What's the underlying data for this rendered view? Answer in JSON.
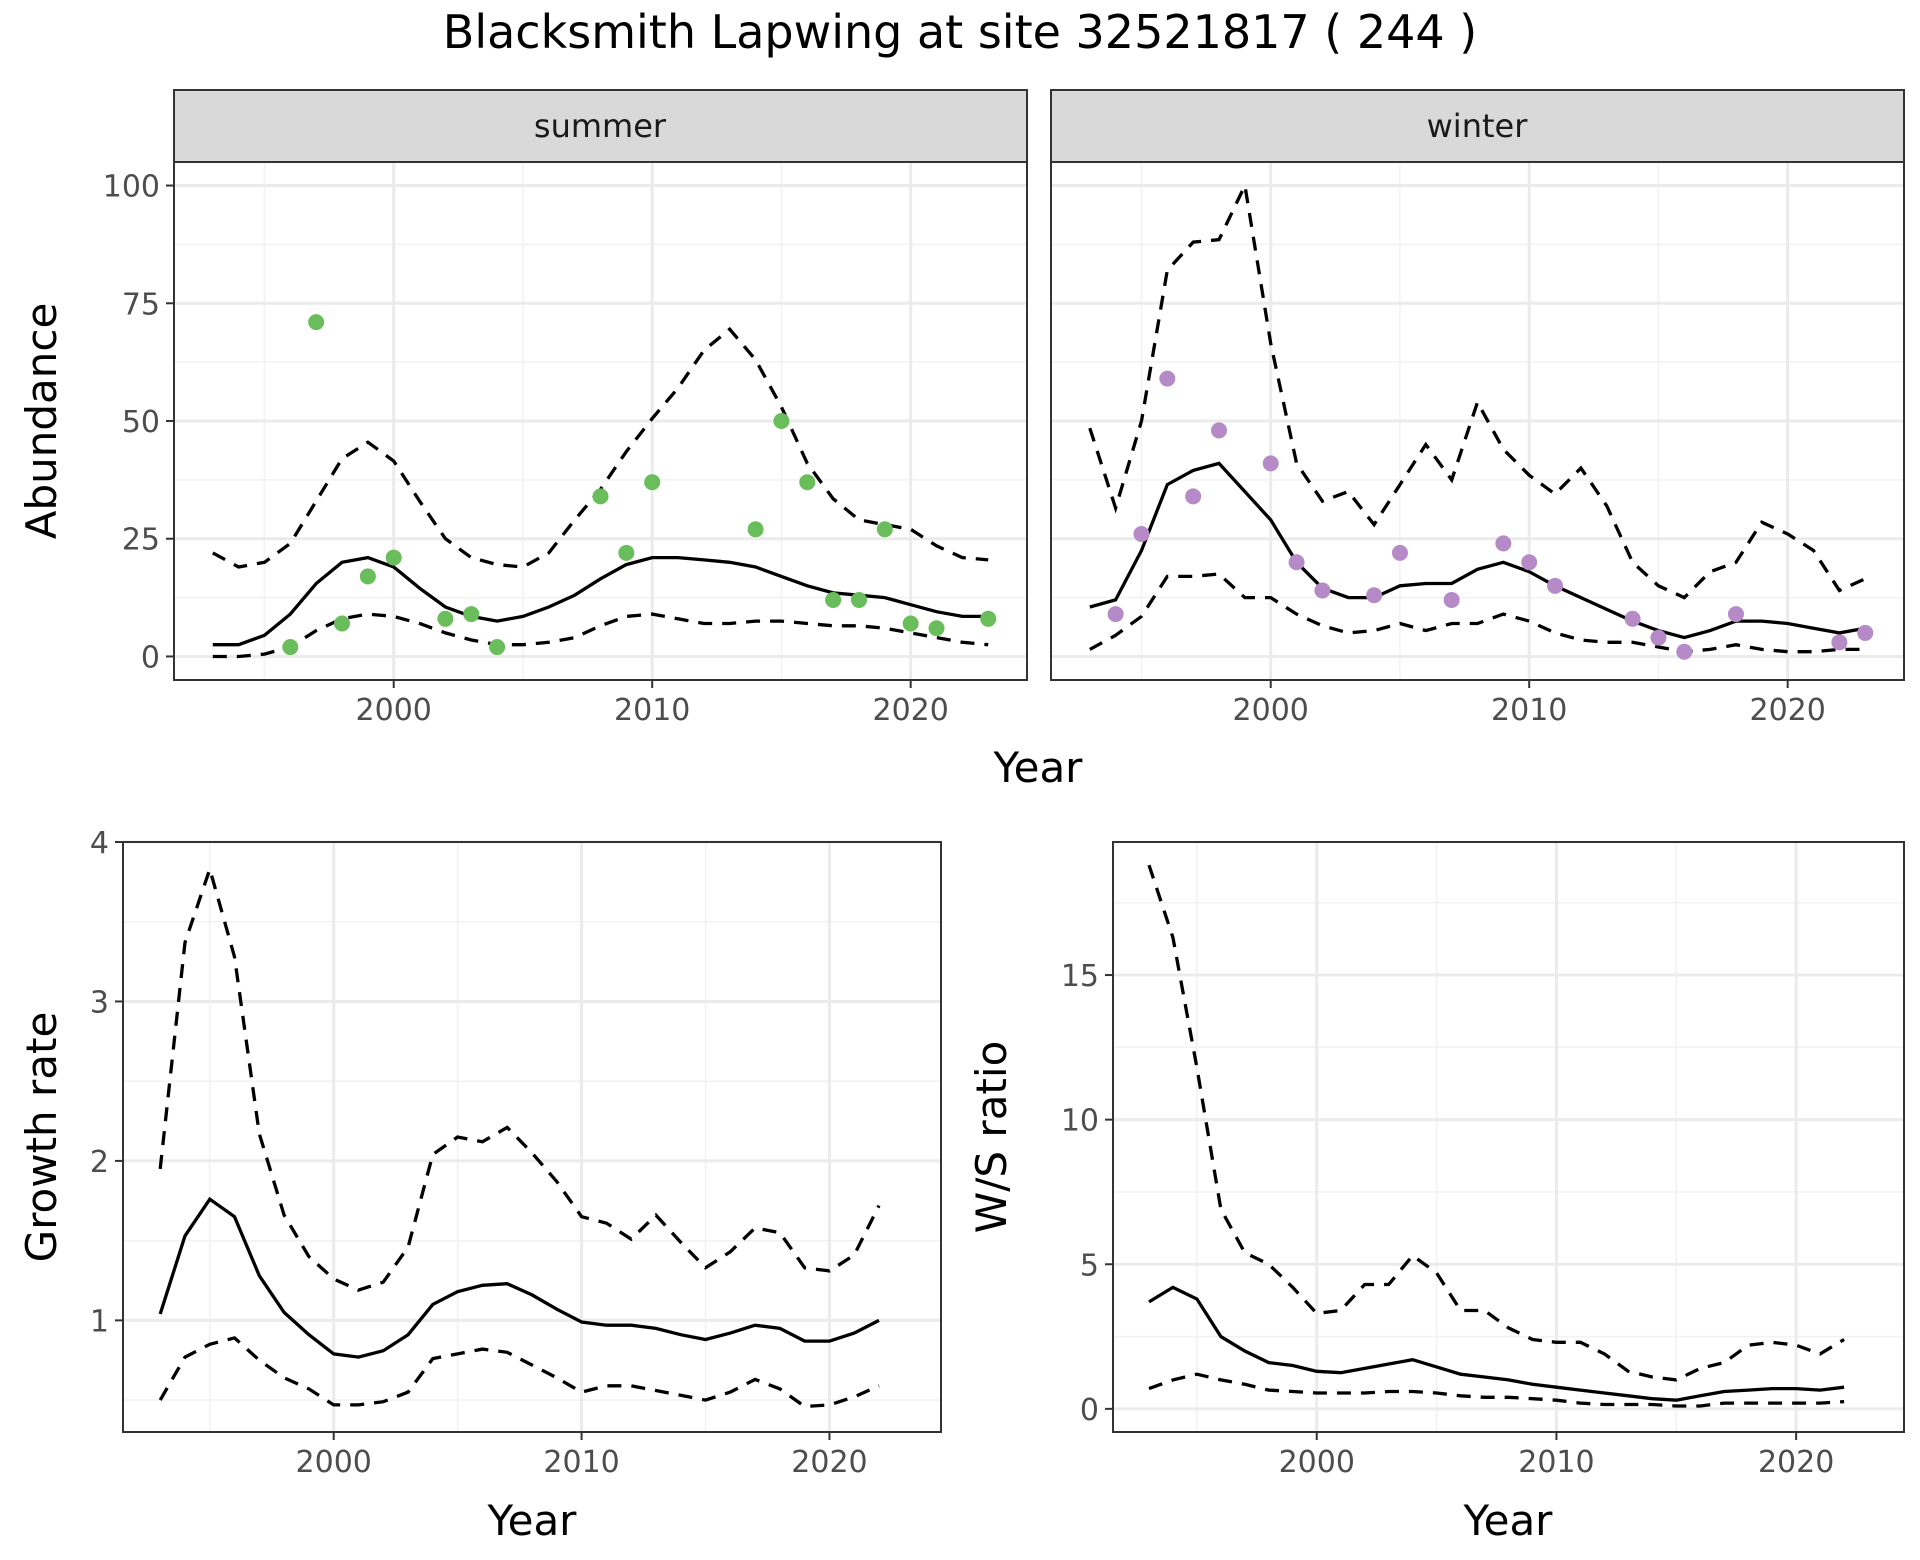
{
  "title": "Blacksmith Lapwing at site 32521817 ( 244 )",
  "colors": {
    "summer_points": "#6abd5b",
    "winter_points": "#b58ac7",
    "strip_fill": "#d9d9d9",
    "lines": "#000000"
  },
  "chart_data": [
    {
      "type": "line",
      "facet": "summer",
      "xlabel": "Year",
      "ylabel": "Abundance",
      "xlim": [
        1991.5,
        2024.5
      ],
      "ylim": [
        -5,
        105
      ],
      "xticks": [
        2000,
        2010,
        2020
      ],
      "yticks": [
        0,
        25,
        50,
        75,
        100
      ],
      "grid": true,
      "point_color": "#6abd5b",
      "series": [
        {
          "style": "solid",
          "x": [
            1993,
            1994,
            1995,
            1996,
            1997,
            1998,
            1999,
            2000,
            2001,
            2002,
            2003,
            2004,
            2005,
            2006,
            2007,
            2008,
            2009,
            2010,
            2011,
            2012,
            2013,
            2014,
            2015,
            2016,
            2017,
            2018,
            2019,
            2020,
            2021,
            2022,
            2023
          ],
          "values": [
            2.5,
            2.5,
            4.5,
            9,
            15.5,
            20,
            21,
            19,
            14.5,
            10.5,
            8.5,
            7.5,
            8.5,
            10.5,
            13,
            16.5,
            19.5,
            21,
            21,
            20.5,
            20,
            19,
            17,
            15,
            13.5,
            13,
            12.5,
            11,
            9.5,
            8.5,
            8.5
          ]
        },
        {
          "style": "dashed",
          "x": [
            1993,
            1994,
            1995,
            1996,
            1997,
            1998,
            1999,
            2000,
            2001,
            2002,
            2003,
            2004,
            2005,
            2006,
            2007,
            2008,
            2009,
            2010,
            2011,
            2012,
            2013,
            2014,
            2015,
            2016,
            2017,
            2018,
            2019,
            2020,
            2021,
            2022,
            2023
          ],
          "values": [
            22,
            19,
            20,
            24,
            33,
            42,
            45.5,
            41.5,
            33,
            25,
            21,
            19.5,
            19,
            22,
            29,
            35.5,
            43.5,
            50.5,
            57,
            65,
            69.5,
            63,
            53,
            41,
            33.5,
            29,
            28,
            27,
            23.5,
            21,
            20.5
          ]
        },
        {
          "style": "dashed",
          "x": [
            1993,
            1994,
            1995,
            1996,
            1997,
            1998,
            1999,
            2000,
            2001,
            2002,
            2003,
            2004,
            2005,
            2006,
            2007,
            2008,
            2009,
            2010,
            2011,
            2012,
            2013,
            2014,
            2015,
            2016,
            2017,
            2018,
            2019,
            2020,
            2021,
            2022,
            2023
          ],
          "values": [
            0,
            0,
            0.5,
            2,
            5.5,
            8,
            9,
            8.5,
            7,
            5,
            3.5,
            2.5,
            2.5,
            3,
            4,
            6.5,
            8.5,
            9,
            8,
            7,
            7,
            7.5,
            7.5,
            7,
            6.5,
            6.5,
            6,
            5,
            4,
            3,
            2.5
          ]
        }
      ],
      "points": {
        "x": [
          1996,
          1997,
          1998,
          1999,
          2000,
          2002,
          2003,
          2004,
          2008,
          2009,
          2010,
          2014,
          2015,
          2016,
          2017,
          2018,
          2019,
          2020,
          2021,
          2023
        ],
        "y": [
          2,
          71,
          7,
          17,
          21,
          8,
          9,
          2,
          34,
          22,
          37,
          27,
          50,
          37,
          12,
          12,
          27,
          7,
          6,
          8
        ]
      }
    },
    {
      "type": "line",
      "facet": "winter",
      "xlabel": "Year",
      "ylabel": "Abundance",
      "xlim": [
        1991.5,
        2024.5
      ],
      "ylim": [
        -5,
        105
      ],
      "xticks": [
        2000,
        2010,
        2020
      ],
      "yticks": [
        0,
        25,
        50,
        75,
        100
      ],
      "grid": true,
      "point_color": "#b58ac7",
      "series": [
        {
          "style": "solid",
          "x": [
            1993,
            1994,
            1995,
            1996,
            1997,
            1998,
            1999,
            2000,
            2001,
            2002,
            2003,
            2004,
            2005,
            2006,
            2007,
            2008,
            2009,
            2010,
            2011,
            2012,
            2013,
            2014,
            2015,
            2016,
            2017,
            2018,
            2019,
            2020,
            2021,
            2022,
            2023
          ],
          "values": [
            10.5,
            12,
            22.5,
            36.5,
            39.5,
            41,
            35,
            29,
            20,
            14.5,
            12.5,
            12.5,
            15,
            15.5,
            15.5,
            18.5,
            20,
            18,
            15,
            12.5,
            10,
            7.5,
            5.5,
            4,
            5.5,
            7.5,
            7.5,
            7,
            6,
            5,
            6
          ]
        },
        {
          "style": "dashed",
          "x": [
            1993,
            1994,
            1995,
            1996,
            1997,
            1998,
            1999,
            2000,
            2001,
            2002,
            2003,
            2004,
            2005,
            2006,
            2007,
            2008,
            2009,
            2010,
            2011,
            2012,
            2013,
            2014,
            2015,
            2016,
            2017,
            2018,
            2019,
            2020,
            2021,
            2022,
            2023
          ],
          "values": [
            48.5,
            31.5,
            50,
            82,
            88,
            88.5,
            100,
            66.5,
            41,
            33,
            35,
            28,
            36.5,
            45,
            37.5,
            54,
            44,
            38.5,
            34.5,
            40,
            32,
            20,
            15,
            12.5,
            18,
            20,
            28.5,
            26,
            22.5,
            14,
            16.5
          ]
        },
        {
          "style": "dashed",
          "x": [
            1993,
            1994,
            1995,
            1996,
            1997,
            1998,
            1999,
            2000,
            2001,
            2002,
            2003,
            2004,
            2005,
            2006,
            2007,
            2008,
            2009,
            2010,
            2011,
            2012,
            2013,
            2014,
            2015,
            2016,
            2017,
            2018,
            2019,
            2020,
            2021,
            2022,
            2023
          ],
          "values": [
            1.5,
            4.5,
            8.5,
            17,
            17,
            17.5,
            12.5,
            12.5,
            9,
            6.5,
            5,
            5.5,
            7,
            5.5,
            7,
            7,
            9,
            7.5,
            5,
            3.5,
            3,
            3,
            2,
            1,
            1.5,
            2.5,
            1.5,
            1,
            1,
            1.5,
            1.5
          ]
        }
      ],
      "points": {
        "x": [
          1994,
          1995,
          1996,
          1997,
          1998,
          2000,
          2001,
          2002,
          2004,
          2005,
          2007,
          2009,
          2010,
          2011,
          2014,
          2015,
          2016,
          2018,
          2022,
          2023
        ],
        "y": [
          9,
          26,
          59,
          34,
          48,
          41,
          20,
          14,
          13,
          22,
          12,
          24,
          20,
          15,
          8,
          4,
          1,
          9,
          3,
          5
        ]
      }
    },
    {
      "type": "line",
      "xlabel": "Year",
      "ylabel": "Growth rate",
      "xlim": [
        1991.5,
        2024.5
      ],
      "ylim": [
        0.3,
        4.0
      ],
      "xticks": [
        2000,
        2010,
        2020
      ],
      "yticks": [
        1,
        2,
        3,
        4
      ],
      "grid": true,
      "series": [
        {
          "style": "solid",
          "x": [
            1993,
            1994,
            1995,
            1996,
            1997,
            1998,
            1999,
            2000,
            2001,
            2002,
            2003,
            2004,
            2005,
            2006,
            2007,
            2008,
            2009,
            2010,
            2011,
            2012,
            2013,
            2014,
            2015,
            2016,
            2017,
            2018,
            2019,
            2020,
            2021,
            2022
          ],
          "values": [
            1.04,
            1.53,
            1.76,
            1.65,
            1.28,
            1.05,
            0.91,
            0.79,
            0.77,
            0.81,
            0.91,
            1.1,
            1.18,
            1.22,
            1.23,
            1.16,
            1.07,
            0.99,
            0.97,
            0.97,
            0.95,
            0.91,
            0.88,
            0.92,
            0.97,
            0.95,
            0.87,
            0.87,
            0.92,
            1.0
          ]
        },
        {
          "style": "dashed",
          "x": [
            1993,
            1994,
            1995,
            1996,
            1997,
            1998,
            1999,
            2000,
            2001,
            2002,
            2003,
            2004,
            2005,
            2006,
            2007,
            2008,
            2009,
            2010,
            2011,
            2012,
            2013,
            2014,
            2015,
            2016,
            2017,
            2018,
            2019,
            2020,
            2021,
            2022
          ],
          "values": [
            1.95,
            3.37,
            3.83,
            3.28,
            2.17,
            1.66,
            1.4,
            1.26,
            1.19,
            1.24,
            1.46,
            2.04,
            2.15,
            2.12,
            2.21,
            2.05,
            1.87,
            1.65,
            1.61,
            1.51,
            1.66,
            1.49,
            1.33,
            1.43,
            1.58,
            1.55,
            1.33,
            1.31,
            1.41,
            1.72
          ]
        },
        {
          "style": "dashed",
          "x": [
            1993,
            1994,
            1995,
            1996,
            1997,
            1998,
            1999,
            2000,
            2001,
            2002,
            2003,
            2004,
            2005,
            2006,
            2007,
            2008,
            2009,
            2010,
            2011,
            2012,
            2013,
            2014,
            2015,
            2016,
            2017,
            2018,
            2019,
            2020,
            2021,
            2022
          ],
          "values": [
            0.5,
            0.77,
            0.85,
            0.89,
            0.75,
            0.64,
            0.57,
            0.47,
            0.47,
            0.49,
            0.55,
            0.76,
            0.79,
            0.82,
            0.8,
            0.72,
            0.64,
            0.55,
            0.59,
            0.59,
            0.56,
            0.53,
            0.5,
            0.55,
            0.63,
            0.57,
            0.46,
            0.47,
            0.52,
            0.59
          ]
        }
      ]
    },
    {
      "type": "line",
      "xlabel": "Year",
      "ylabel": "W/S ratio",
      "xlim": [
        1991.5,
        2024.5
      ],
      "ylim": [
        -0.8,
        19.6
      ],
      "xticks": [
        2000,
        2010,
        2020
      ],
      "yticks": [
        0,
        5,
        10,
        15
      ],
      "grid": true,
      "series": [
        {
          "style": "solid",
          "x": [
            1993,
            1994,
            1995,
            1996,
            1997,
            1998,
            1999,
            2000,
            2001,
            2002,
            2003,
            2004,
            2005,
            2006,
            2007,
            2008,
            2009,
            2010,
            2011,
            2012,
            2013,
            2014,
            2015,
            2016,
            2017,
            2018,
            2019,
            2020,
            2021,
            2022
          ],
          "values": [
            3.7,
            4.2,
            3.8,
            2.5,
            2.0,
            1.6,
            1.5,
            1.3,
            1.25,
            1.4,
            1.55,
            1.7,
            1.45,
            1.2,
            1.1,
            1.0,
            0.85,
            0.75,
            0.65,
            0.55,
            0.45,
            0.35,
            0.3,
            0.45,
            0.6,
            0.65,
            0.7,
            0.7,
            0.65,
            0.75
          ]
        },
        {
          "style": "dashed",
          "x": [
            1993,
            1994,
            1995,
            1996,
            1997,
            1998,
            1999,
            2000,
            2001,
            2002,
            2003,
            2004,
            2005,
            2006,
            2007,
            2008,
            2009,
            2010,
            2011,
            2012,
            2013,
            2014,
            2015,
            2016,
            2017,
            2018,
            2019,
            2020,
            2021,
            2022
          ],
          "values": [
            18.8,
            16.3,
            11.8,
            6.9,
            5.4,
            5.0,
            4.2,
            3.3,
            3.4,
            4.3,
            4.3,
            5.3,
            4.7,
            3.4,
            3.4,
            2.8,
            2.4,
            2.3,
            2.3,
            1.9,
            1.3,
            1.1,
            1.0,
            1.4,
            1.6,
            2.2,
            2.3,
            2.2,
            1.9,
            2.4
          ]
        },
        {
          "style": "dashed",
          "x": [
            1993,
            1994,
            1995,
            1996,
            1997,
            1998,
            1999,
            2000,
            2001,
            2002,
            2003,
            2004,
            2005,
            2006,
            2007,
            2008,
            2009,
            2010,
            2011,
            2012,
            2013,
            2014,
            2015,
            2016,
            2017,
            2018,
            2019,
            2020,
            2021,
            2022
          ],
          "values": [
            0.7,
            1.0,
            1.2,
            1.0,
            0.85,
            0.65,
            0.6,
            0.55,
            0.55,
            0.55,
            0.6,
            0.6,
            0.55,
            0.45,
            0.4,
            0.4,
            0.35,
            0.3,
            0.2,
            0.15,
            0.15,
            0.15,
            0.1,
            0.1,
            0.2,
            0.2,
            0.2,
            0.2,
            0.2,
            0.25
          ]
        }
      ]
    }
  ],
  "facets": {
    "summer": "summer",
    "winter": "winter"
  }
}
